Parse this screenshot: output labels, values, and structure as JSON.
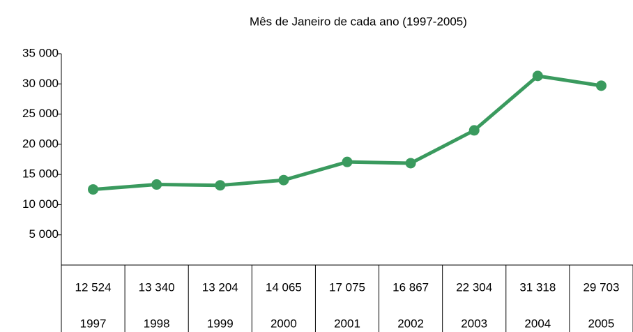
{
  "chart_data": {
    "type": "line",
    "title": "Mês de Janeiro de cada ano (1997-2005)",
    "categories": [
      "1997",
      "1998",
      "1999",
      "2000",
      "2001",
      "2002",
      "2003",
      "2004",
      "2005"
    ],
    "values": [
      12524,
      13340,
      13204,
      14065,
      17075,
      16867,
      22304,
      31318,
      29703
    ],
    "value_labels": [
      "12 524",
      "13 340",
      "13 204",
      "14 065",
      "17 075",
      "16 867",
      "22 304",
      "31 318",
      "29 703"
    ],
    "color": "#3a9a5e",
    "ylim": [
      0,
      35000
    ],
    "yticks": [
      {
        "value": 5000,
        "label": "5 000"
      },
      {
        "value": 10000,
        "label": "10 000"
      },
      {
        "value": 15000,
        "label": "15 000"
      },
      {
        "value": 20000,
        "label": "20 000"
      },
      {
        "value": 25000,
        "label": "25 000"
      },
      {
        "value": 30000,
        "label": "30 000"
      },
      {
        "value": 35000,
        "label": "35 000"
      }
    ]
  }
}
